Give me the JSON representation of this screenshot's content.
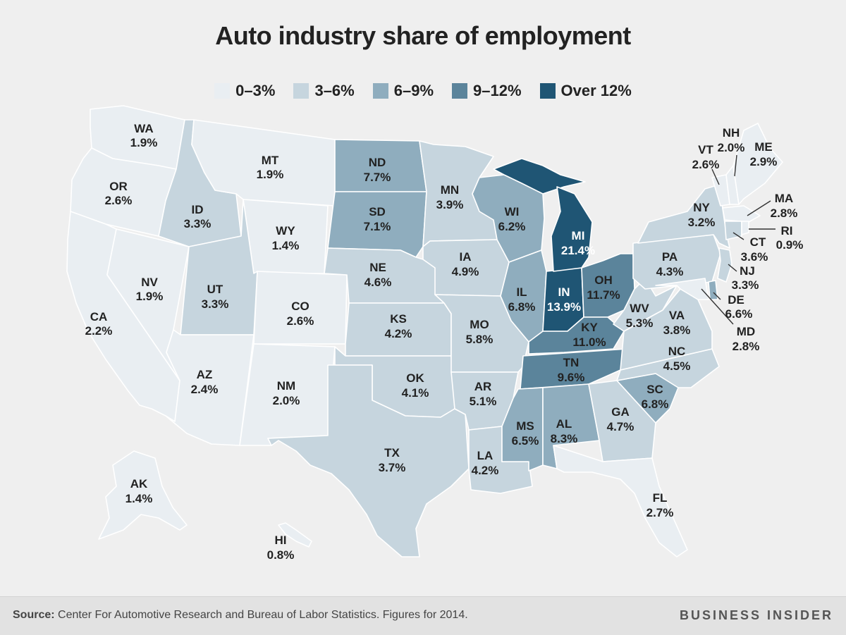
{
  "title": "Auto industry share of employment",
  "colors": {
    "0-3": "#e9eef2",
    "3-6": "#c6d5de",
    "6-9": "#8fadbe",
    "9-12": "#5b849b",
    "over12": "#1f5574",
    "border": "#ffffff",
    "background": "#efefef"
  },
  "legend": [
    {
      "key": "0-3",
      "label": "0–3%"
    },
    {
      "key": "3-6",
      "label": "3–6%"
    },
    {
      "key": "6-9",
      "label": "6–9%"
    },
    {
      "key": "9-12",
      "label": "9–12%"
    },
    {
      "key": "over12",
      "label": "Over 12%"
    }
  ],
  "states": {
    "WA": {
      "code": "WA",
      "value": "1.9%"
    },
    "OR": {
      "code": "OR",
      "value": "2.6%"
    },
    "CA": {
      "code": "CA",
      "value": "2.2%"
    },
    "NV": {
      "code": "NV",
      "value": "1.9%"
    },
    "ID": {
      "code": "ID",
      "value": "3.3%"
    },
    "MT": {
      "code": "MT",
      "value": "1.9%"
    },
    "WY": {
      "code": "WY",
      "value": "1.4%"
    },
    "UT": {
      "code": "UT",
      "value": "3.3%"
    },
    "AZ": {
      "code": "AZ",
      "value": "2.4%"
    },
    "CO": {
      "code": "CO",
      "value": "2.6%"
    },
    "NM": {
      "code": "NM",
      "value": "2.0%"
    },
    "ND": {
      "code": "ND",
      "value": "7.7%"
    },
    "SD": {
      "code": "SD",
      "value": "7.1%"
    },
    "NE": {
      "code": "NE",
      "value": "4.6%"
    },
    "KS": {
      "code": "KS",
      "value": "4.2%"
    },
    "OK": {
      "code": "OK",
      "value": "4.1%"
    },
    "TX": {
      "code": "TX",
      "value": "3.7%"
    },
    "MN": {
      "code": "MN",
      "value": "3.9%"
    },
    "IA": {
      "code": "IA",
      "value": "4.9%"
    },
    "MO": {
      "code": "MO",
      "value": "5.8%"
    },
    "AR": {
      "code": "AR",
      "value": "5.1%"
    },
    "LA": {
      "code": "LA",
      "value": "4.2%"
    },
    "WI": {
      "code": "WI",
      "value": "6.2%"
    },
    "IL": {
      "code": "IL",
      "value": "6.8%"
    },
    "MI": {
      "code": "MI",
      "value": "21.4%"
    },
    "IN": {
      "code": "IN",
      "value": "13.9%"
    },
    "OH": {
      "code": "OH",
      "value": "11.7%"
    },
    "KY": {
      "code": "KY",
      "value": "11.0%"
    },
    "TN": {
      "code": "TN",
      "value": "9.6%"
    },
    "MS": {
      "code": "MS",
      "value": "6.5%"
    },
    "AL": {
      "code": "AL",
      "value": "8.3%"
    },
    "GA": {
      "code": "GA",
      "value": "4.7%"
    },
    "FL": {
      "code": "FL",
      "value": "2.7%"
    },
    "SC": {
      "code": "SC",
      "value": "6.8%"
    },
    "NC": {
      "code": "NC",
      "value": "4.5%"
    },
    "VA": {
      "code": "VA",
      "value": "3.8%"
    },
    "WV": {
      "code": "WV",
      "value": "5.3%"
    },
    "PA": {
      "code": "PA",
      "value": "4.3%"
    },
    "NY": {
      "code": "NY",
      "value": "3.2%"
    },
    "VT": {
      "code": "VT",
      "value": "2.6%"
    },
    "NH": {
      "code": "NH",
      "value": "2.0%"
    },
    "ME": {
      "code": "ME",
      "value": "2.9%"
    },
    "MA": {
      "code": "MA",
      "value": "2.8%"
    },
    "RI": {
      "code": "RI",
      "value": "0.9%"
    },
    "CT": {
      "code": "CT",
      "value": "3.6%"
    },
    "NJ": {
      "code": "NJ",
      "value": "3.3%"
    },
    "DE": {
      "code": "DE",
      "value": "6.6%"
    },
    "MD": {
      "code": "MD",
      "value": "2.8%"
    },
    "AK": {
      "code": "AK",
      "value": "1.4%"
    },
    "HI": {
      "code": "HI",
      "value": "0.8%"
    }
  },
  "footer": {
    "source_label": "Source:",
    "source_text": " Center For Automotive Research and Bureau of Labor Statistics. Figures for 2014.",
    "brand": "BUSINESS INSIDER"
  }
}
